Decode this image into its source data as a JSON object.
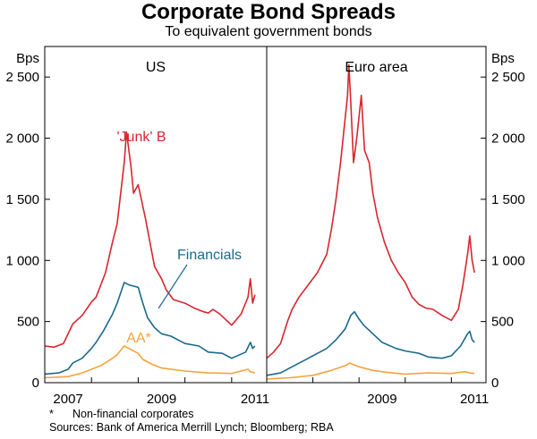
{
  "header": {
    "title": "Corporate Bond Spreads",
    "subtitle": "To equivalent government bonds"
  },
  "footnotes": {
    "marker": "*",
    "note": "Non-financial corporates",
    "sources": "Sources: Bank of America Merrill Lynch; Bloomberg; RBA"
  },
  "colors": {
    "junk": "#d7262e",
    "financials": "#1a6a8c",
    "aa": "#f5a33d",
    "axis": "#000000"
  },
  "chart_data": [
    {
      "type": "line",
      "panel_title": "US",
      "ylabel": "Bps",
      "ylim": [
        0,
        2750
      ],
      "yticks": [
        0,
        500,
        1000,
        1500,
        2000,
        2500
      ],
      "ytick_labels": [
        "0",
        "500",
        "1 000",
        "1 500",
        "2 000",
        "2 500"
      ],
      "xlim": [
        2007.0,
        2011.75
      ],
      "xtick_labels": [
        "2007",
        "2009",
        "2011"
      ],
      "annotations": [
        "'Junk' B",
        "Financials",
        "AA*"
      ],
      "series": [
        {
          "name": "'Junk' B",
          "x": [
            2007.0,
            2007.2,
            2007.4,
            2007.5,
            2007.6,
            2007.8,
            2008.0,
            2008.1,
            2008.3,
            2008.45,
            2008.55,
            2008.7,
            2008.75,
            2008.8,
            2008.85,
            2008.9,
            2009.0,
            2009.15,
            2009.25,
            2009.35,
            2009.5,
            2009.6,
            2009.75,
            2010.0,
            2010.2,
            2010.4,
            2010.5,
            2010.6,
            2010.75,
            2011.0,
            2011.2,
            2011.35,
            2011.4,
            2011.45,
            2011.5
          ],
          "y": [
            300,
            290,
            320,
            400,
            480,
            550,
            660,
            700,
            900,
            1150,
            1300,
            1800,
            2050,
            1900,
            1750,
            1550,
            1620,
            1350,
            1150,
            950,
            850,
            760,
            680,
            650,
            610,
            580,
            570,
            600,
            560,
            470,
            560,
            700,
            850,
            650,
            720
          ]
        },
        {
          "name": "Financials",
          "x": [
            2007.0,
            2007.3,
            2007.5,
            2007.6,
            2007.8,
            2008.0,
            2008.1,
            2008.25,
            2008.45,
            2008.55,
            2008.7,
            2008.8,
            2009.0,
            2009.1,
            2009.2,
            2009.35,
            2009.5,
            2009.7,
            2010.0,
            2010.3,
            2010.5,
            2010.8,
            2011.0,
            2011.3,
            2011.4,
            2011.45,
            2011.5
          ],
          "y": [
            70,
            80,
            110,
            160,
            200,
            280,
            330,
            420,
            560,
            650,
            820,
            800,
            780,
            650,
            530,
            450,
            400,
            380,
            320,
            300,
            250,
            240,
            200,
            250,
            330,
            280,
            300
          ]
        },
        {
          "name": "AA*",
          "x": [
            2007.0,
            2007.5,
            2007.8,
            2008.0,
            2008.2,
            2008.45,
            2008.55,
            2008.7,
            2008.8,
            2009.0,
            2009.1,
            2009.3,
            2009.5,
            2010.0,
            2010.5,
            2011.0,
            2011.35,
            2011.4,
            2011.5
          ],
          "y": [
            40,
            50,
            80,
            110,
            140,
            200,
            230,
            300,
            280,
            240,
            190,
            150,
            120,
            95,
            80,
            75,
            110,
            90,
            80
          ]
        }
      ]
    },
    {
      "type": "line",
      "panel_title": "Euro area",
      "ylabel": "Bps",
      "ylim": [
        0,
        2750
      ],
      "yticks": [
        0,
        500,
        1000,
        1500,
        2000,
        2500
      ],
      "ytick_labels": [
        "0",
        "500",
        "1 000",
        "1 500",
        "2 000",
        "2 500"
      ],
      "xlim": [
        2007.0,
        2011.75
      ],
      "xtick_labels": [
        "2009",
        "2011"
      ],
      "series": [
        {
          "name": "'Junk' B",
          "x": [
            2007.0,
            2007.15,
            2007.3,
            2007.45,
            2007.55,
            2007.7,
            2007.9,
            2008.1,
            2008.3,
            2008.4,
            2008.5,
            2008.6,
            2008.75,
            2008.78,
            2008.82,
            2008.88,
            2008.95,
            2009.05,
            2009.12,
            2009.22,
            2009.3,
            2009.4,
            2009.55,
            2009.7,
            2009.85,
            2010.0,
            2010.15,
            2010.3,
            2010.45,
            2010.6,
            2010.8,
            2011.0,
            2011.15,
            2011.25,
            2011.35,
            2011.4,
            2011.45,
            2011.5
          ],
          "y": [
            200,
            250,
            320,
            500,
            600,
            700,
            800,
            900,
            1050,
            1250,
            1500,
            1800,
            2350,
            2600,
            2300,
            1800,
            2000,
            2350,
            1900,
            1800,
            1550,
            1350,
            1150,
            1000,
            900,
            820,
            700,
            640,
            610,
            600,
            550,
            510,
            600,
            800,
            1050,
            1200,
            1000,
            900
          ]
        },
        {
          "name": "Financials",
          "x": [
            2007.0,
            2007.3,
            2007.5,
            2007.8,
            2008.0,
            2008.3,
            2008.5,
            2008.7,
            2008.82,
            2008.9,
            2009.0,
            2009.1,
            2009.3,
            2009.5,
            2009.8,
            2010.0,
            2010.3,
            2010.5,
            2010.8,
            2011.0,
            2011.2,
            2011.35,
            2011.4,
            2011.45,
            2011.5
          ],
          "y": [
            60,
            80,
            120,
            180,
            220,
            280,
            350,
            440,
            550,
            580,
            520,
            470,
            400,
            330,
            280,
            260,
            240,
            210,
            200,
            220,
            300,
            400,
            420,
            350,
            330
          ]
        },
        {
          "name": "AA*",
          "x": [
            2007.0,
            2007.5,
            2008.0,
            2008.4,
            2008.7,
            2008.8,
            2009.0,
            2009.3,
            2009.6,
            2010.0,
            2010.5,
            2011.0,
            2011.3,
            2011.4,
            2011.5
          ],
          "y": [
            30,
            40,
            60,
            100,
            140,
            160,
            130,
            100,
            85,
            70,
            80,
            75,
            90,
            80,
            75
          ]
        }
      ]
    }
  ]
}
